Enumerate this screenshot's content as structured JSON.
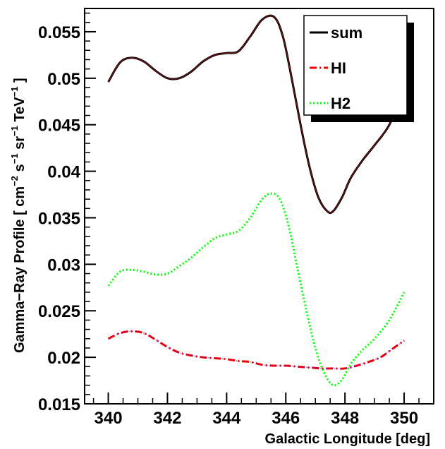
{
  "chart_data": {
    "type": "line",
    "title": "",
    "xlabel": "Galactic Longitude [deg]",
    "ylabel": "Gamma−Ray Profile [ cm",
    "ylabel_sup1": "−2",
    "ylabel_part2": " s",
    "ylabel_sup2": "−1",
    "ylabel_part3": " sr",
    "ylabel_sup3": "−1",
    "ylabel_part4": " TeV",
    "ylabel_sup4": "−1",
    "ylabel_end": " ]",
    "xlim": [
      339.2,
      351.0
    ],
    "ylim": [
      0.015,
      0.0575
    ],
    "xticks": [
      340,
      342,
      344,
      346,
      348,
      350
    ],
    "yticks": [
      0.015,
      0.02,
      0.025,
      0.03,
      0.035,
      0.04,
      0.045,
      0.05,
      0.055
    ],
    "ytick_labels": [
      "0.015",
      "0.02",
      "0.025",
      "0.03",
      "0.035",
      "0.04",
      "0.045",
      "0.05",
      "0.055"
    ],
    "grid": false,
    "legend_position": "top-right",
    "legend": [
      {
        "name": "sum",
        "color": "#000000",
        "style": "solid"
      },
      {
        "name": "HI",
        "color": "#ff0000",
        "style": "dash-dot"
      },
      {
        "name": "H2",
        "color": "#00ff00",
        "style": "dotted"
      }
    ],
    "series": [
      {
        "name": "sum",
        "color": "#000000",
        "style": "solid",
        "x": [
          340.0,
          340.4,
          340.8,
          341.2,
          341.6,
          342.0,
          342.4,
          342.8,
          343.2,
          343.6,
          344.0,
          344.4,
          344.8,
          345.2,
          345.6,
          345.9,
          346.2,
          346.5,
          346.8,
          347.1,
          347.4,
          347.6,
          347.9,
          348.2,
          348.6,
          349.0,
          349.5,
          350.0
        ],
        "y": [
          0.0496,
          0.0517,
          0.0522,
          0.0518,
          0.0508,
          0.05,
          0.05,
          0.0507,
          0.0518,
          0.0525,
          0.0527,
          0.0529,
          0.0545,
          0.0563,
          0.0566,
          0.0545,
          0.05,
          0.045,
          0.0405,
          0.0372,
          0.0357,
          0.0357,
          0.0372,
          0.0393,
          0.0412,
          0.0428,
          0.045,
          0.0488
        ]
      },
      {
        "name": "HI",
        "color": "#ff0000",
        "style": "dash-dot",
        "x": [
          340.0,
          340.4,
          340.8,
          341.2,
          341.6,
          342.0,
          342.4,
          342.8,
          343.2,
          343.6,
          344.0,
          344.4,
          344.8,
          345.2,
          345.6,
          346.0,
          346.4,
          346.8,
          347.2,
          347.6,
          348.0,
          348.4,
          348.8,
          349.2,
          349.6,
          350.0
        ],
        "y": [
          0.022,
          0.0226,
          0.0228,
          0.0226,
          0.0219,
          0.0211,
          0.0205,
          0.0202,
          0.02,
          0.0199,
          0.0198,
          0.0196,
          0.0195,
          0.0192,
          0.0191,
          0.0191,
          0.019,
          0.0189,
          0.0188,
          0.0188,
          0.0188,
          0.0191,
          0.0195,
          0.02,
          0.0209,
          0.0218
        ]
      },
      {
        "name": "H2",
        "color": "#00ff00",
        "style": "dotted",
        "x": [
          340.0,
          340.4,
          340.8,
          341.2,
          341.6,
          342.0,
          342.4,
          342.8,
          343.2,
          343.6,
          344.0,
          344.4,
          344.8,
          345.2,
          345.5,
          345.8,
          346.1,
          346.4,
          346.7,
          347.0,
          347.3,
          347.6,
          347.9,
          348.2,
          348.6,
          349.0,
          349.5,
          350.0
        ],
        "y": [
          0.0277,
          0.0292,
          0.0294,
          0.0292,
          0.0289,
          0.029,
          0.0298,
          0.0307,
          0.0318,
          0.0328,
          0.0332,
          0.0336,
          0.035,
          0.037,
          0.0376,
          0.037,
          0.0341,
          0.0295,
          0.025,
          0.021,
          0.0183,
          0.017,
          0.0176,
          0.0193,
          0.0208,
          0.022,
          0.024,
          0.027
        ]
      }
    ]
  }
}
